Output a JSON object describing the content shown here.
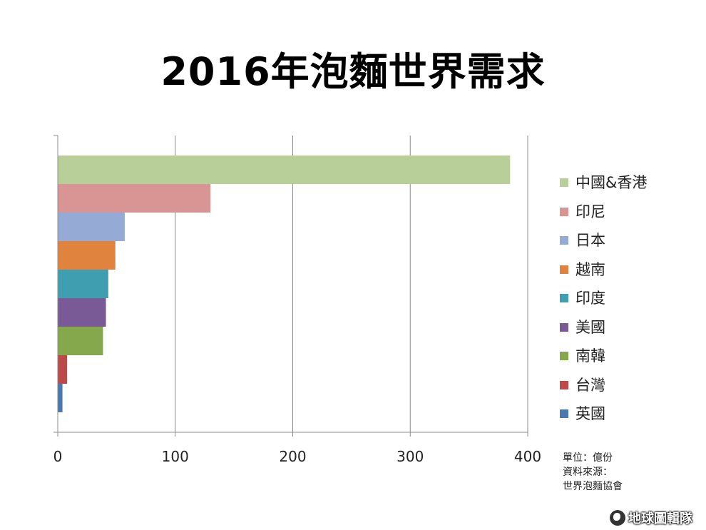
{
  "chart_data": {
    "type": "bar",
    "orientation": "horizontal",
    "title": "2016年泡麵世界需求",
    "categories": [
      "中國&香港",
      "印尼",
      "日本",
      "越南",
      "印度",
      "美國",
      "南韓",
      "台灣",
      "英國"
    ],
    "values": [
      385,
      130,
      57,
      49,
      43,
      41,
      38.5,
      8,
      4
    ],
    "colors": [
      "#b9cf9a",
      "#d99594",
      "#95abd5",
      "#e0833f",
      "#3f9fb0",
      "#7a5a96",
      "#85a84c",
      "#bd4a48",
      "#4a79b0"
    ],
    "xlim": [
      0,
      400
    ],
    "xticks": [
      "0",
      "100",
      "200",
      "300",
      "400"
    ],
    "grid": true,
    "legend_position": "right"
  },
  "notes": {
    "unit": "單位：億份",
    "source_label": "資料來源：",
    "source_name": "世界泡麵協會"
  },
  "brand": {
    "name": "地球圖輯隊",
    "icon": "globe-icon"
  }
}
